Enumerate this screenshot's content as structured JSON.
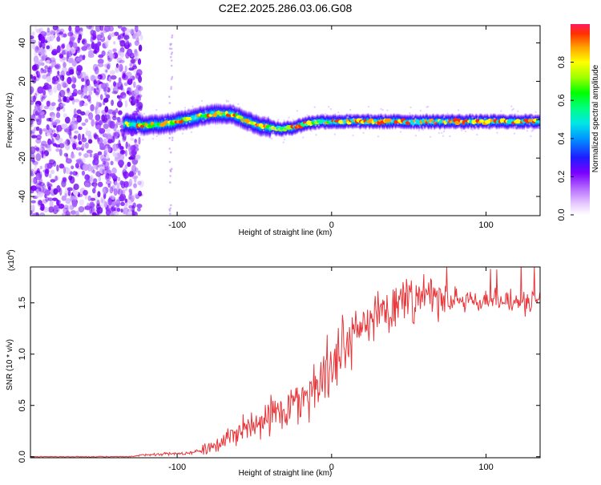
{
  "title": "C2E2.2025.286.03.06.G08",
  "chart_data": [
    {
      "type": "heatmap",
      "name": "spectrogram",
      "xlabel": "Height of straight line (km)",
      "ylabel": "Frequency (Hz)",
      "xlim": [
        -195,
        135
      ],
      "ylim": [
        -50,
        49
      ],
      "xticks": [
        -100,
        0,
        100
      ],
      "yticks": [
        -40,
        -20,
        0,
        20,
        40
      ],
      "noise_region_x": [
        -195,
        -123
      ],
      "ridge": [
        {
          "x": -135,
          "y": -2
        },
        {
          "x": -120,
          "y": -3
        },
        {
          "x": -105,
          "y": -2
        },
        {
          "x": -95,
          "y": 0
        },
        {
          "x": -85,
          "y": 2
        },
        {
          "x": -75,
          "y": 3
        },
        {
          "x": -65,
          "y": 3
        },
        {
          "x": -57,
          "y": 0
        },
        {
          "x": -48,
          "y": -3
        },
        {
          "x": -40,
          "y": -4
        },
        {
          "x": -33,
          "y": -5
        },
        {
          "x": -25,
          "y": -4
        },
        {
          "x": -17,
          "y": -2
        },
        {
          "x": -8,
          "y": -1
        },
        {
          "x": 10,
          "y": -1
        },
        {
          "x": 40,
          "y": -1
        },
        {
          "x": 70,
          "y": -1
        },
        {
          "x": 100,
          "y": -1
        },
        {
          "x": 135,
          "y": -1
        }
      ],
      "colorbar": {
        "label": "Normalized spectral amplitude",
        "range": [
          0,
          1
        ],
        "ticks": [
          "0.0",
          "0.2",
          "0.4",
          "0.6",
          "0.8"
        ],
        "tick_values": [
          0.0,
          0.2,
          0.4,
          0.6,
          0.8
        ]
      }
    },
    {
      "type": "line",
      "name": "snr",
      "xlabel": "Height of straight line (km)",
      "ylabel": "SNR (10 * v/v)",
      "multiplier_label": "(x10",
      "multiplier_exp": "4",
      "multiplier_close": ")",
      "xlim": [
        -195,
        135
      ],
      "ylim": [
        -0.01,
        1.85
      ],
      "xticks": [
        -100,
        0,
        100
      ],
      "yticks": [
        "0.0",
        "0.5",
        "1.0",
        "1.5"
      ],
      "ytick_values": [
        0.0,
        0.5,
        1.0,
        1.5
      ],
      "color": "#e8363a",
      "trend": [
        {
          "x": -195,
          "y": 0.0
        },
        {
          "x": -130,
          "y": 0.0
        },
        {
          "x": -120,
          "y": 0.02
        },
        {
          "x": -105,
          "y": 0.03
        },
        {
          "x": -95,
          "y": 0.03
        },
        {
          "x": -85,
          "y": 0.06
        },
        {
          "x": -75,
          "y": 0.12
        },
        {
          "x": -65,
          "y": 0.2
        },
        {
          "x": -55,
          "y": 0.3
        },
        {
          "x": -45,
          "y": 0.38
        },
        {
          "x": -35,
          "y": 0.42
        },
        {
          "x": -25,
          "y": 0.5
        },
        {
          "x": -15,
          "y": 0.62
        },
        {
          "x": -5,
          "y": 0.8
        },
        {
          "x": 5,
          "y": 1.0
        },
        {
          "x": 15,
          "y": 1.2
        },
        {
          "x": 25,
          "y": 1.38
        },
        {
          "x": 35,
          "y": 1.47
        },
        {
          "x": 50,
          "y": 1.52
        },
        {
          "x": 70,
          "y": 1.53
        },
        {
          "x": 100,
          "y": 1.52
        },
        {
          "x": 135,
          "y": 1.5
        }
      ]
    }
  ]
}
